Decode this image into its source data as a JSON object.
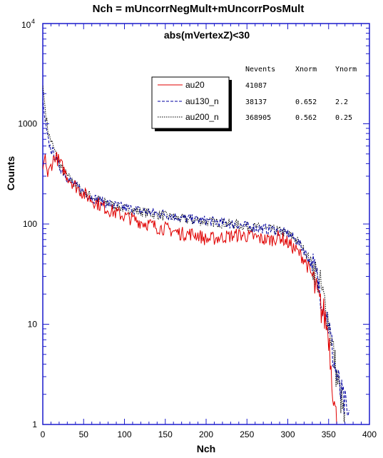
{
  "chart_data": {
    "type": "line",
    "title": "Nch = mUncorrNegMult+mUncorrPosMult",
    "subtitle": "abs(mVertexZ)<30",
    "xlabel": "Nch",
    "ylabel": "Counts",
    "xlim": [
      0,
      400
    ],
    "ylim": [
      1,
      10000
    ],
    "yscale": "log",
    "x_ticks": [
      "0",
      "50",
      "100",
      "150",
      "200",
      "250",
      "300",
      "350",
      "400"
    ],
    "y_ticks": [
      "1",
      "10",
      "100",
      "1000"
    ],
    "y_top_tick": {
      "base": "10",
      "exp": "4"
    },
    "legend_position": "top-left",
    "table": {
      "headers": [
        "Nevents",
        "Xnorm",
        "Ynorm"
      ],
      "rows": [
        [
          "41087",
          "",
          ""
        ],
        [
          "38137",
          "0.652",
          "2.2"
        ],
        [
          "368905",
          "0.562",
          "0.25"
        ]
      ]
    },
    "series": [
      {
        "name": "au20",
        "color": "#e00000",
        "style": "solid",
        "x": [
          0,
          3,
          6,
          10,
          15,
          20,
          30,
          40,
          50,
          60,
          70,
          80,
          90,
          100,
          110,
          120,
          130,
          140,
          150,
          160,
          170,
          180,
          190,
          200,
          210,
          220,
          230,
          240,
          250,
          260,
          270,
          280,
          290,
          300,
          310,
          320,
          330,
          335,
          340,
          345,
          350,
          353,
          356,
          358,
          360
        ],
        "y": [
          350,
          500,
          300,
          380,
          480,
          420,
          300,
          240,
          200,
          175,
          155,
          140,
          128,
          120,
          112,
          105,
          100,
          93,
          90,
          85,
          80,
          80,
          78,
          70,
          72,
          74,
          76,
          78,
          76,
          74,
          70,
          70,
          75,
          65,
          55,
          45,
          30,
          20,
          15,
          12,
          8,
          4,
          2,
          1.3,
          1
        ]
      },
      {
        "name": "au130_n",
        "color": "#0000a0",
        "style": "dashed",
        "x": [
          0,
          2,
          4,
          6,
          8,
          10,
          15,
          20,
          30,
          40,
          50,
          60,
          70,
          80,
          90,
          100,
          110,
          120,
          130,
          140,
          150,
          160,
          170,
          180,
          190,
          200,
          210,
          220,
          230,
          240,
          250,
          260,
          270,
          280,
          290,
          300,
          310,
          320,
          330,
          340,
          350,
          355,
          360,
          365,
          370,
          375
        ],
        "y": [
          1800,
          1200,
          900,
          700,
          620,
          560,
          470,
          380,
          290,
          240,
          210,
          185,
          170,
          160,
          152,
          145,
          140,
          135,
          132,
          128,
          125,
          120,
          115,
          112,
          110,
          108,
          105,
          103,
          100,
          98,
          95,
          92,
          90,
          88,
          85,
          80,
          70,
          55,
          38,
          22,
          10,
          5,
          3,
          2,
          1.5,
          1
        ]
      },
      {
        "name": "au200_n",
        "color": "#000000",
        "style": "dotted",
        "x": [
          0,
          2,
          4,
          6,
          8,
          10,
          15,
          20,
          30,
          40,
          50,
          60,
          70,
          80,
          90,
          100,
          110,
          120,
          130,
          140,
          150,
          160,
          170,
          180,
          190,
          200,
          210,
          220,
          230,
          240,
          250,
          260,
          270,
          280,
          290,
          300,
          310,
          320,
          330,
          340,
          350,
          355,
          360,
          365,
          370
        ],
        "y": [
          2400,
          1700,
          1200,
          900,
          750,
          680,
          520,
          400,
          300,
          245,
          210,
          188,
          172,
          160,
          150,
          142,
          138,
          133,
          128,
          124,
          120,
          116,
          112,
          110,
          108,
          106,
          104,
          102,
          100,
          98,
          95,
          93,
          90,
          88,
          85,
          80,
          70,
          55,
          40,
          24,
          11,
          6,
          3,
          1.8,
          1
        ]
      }
    ]
  }
}
